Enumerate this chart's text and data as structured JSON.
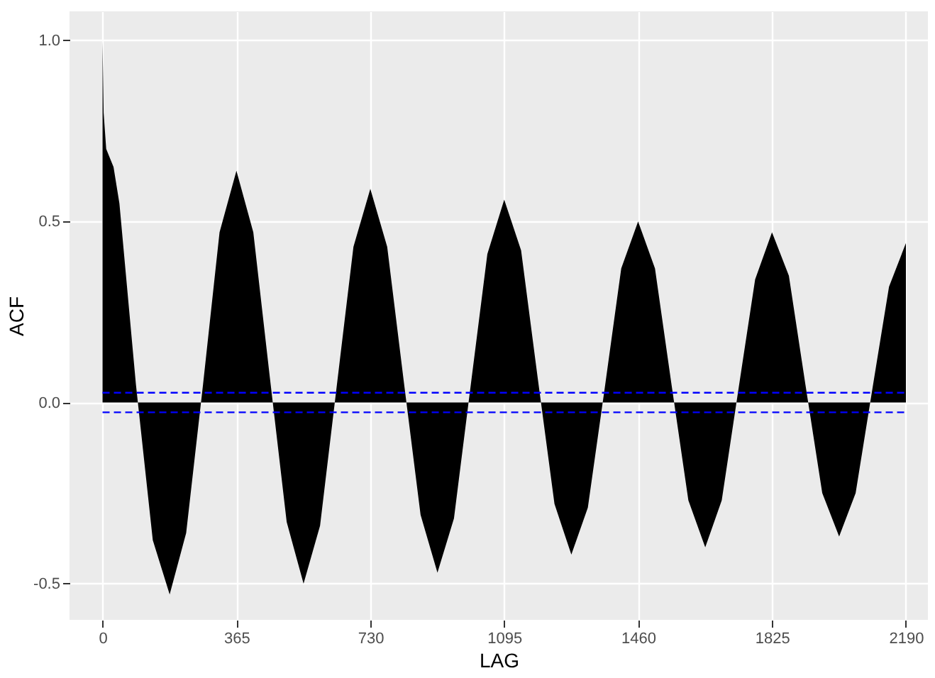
{
  "chart_data": {
    "type": "area",
    "xlabel": "LAG",
    "ylabel": "ACF",
    "x": [
      0,
      3,
      10,
      30,
      46,
      91,
      137,
      183,
      228,
      274,
      319,
      365,
      411,
      456,
      502,
      548,
      593,
      639,
      684,
      730,
      776,
      821,
      867,
      913,
      958,
      1004,
      1049,
      1095,
      1141,
      1186,
      1232,
      1278,
      1323,
      1369,
      1414,
      1460,
      1506,
      1551,
      1597,
      1643,
      1688,
      1734,
      1779,
      1825,
      1871,
      1916,
      1962,
      2008,
      2053,
      2099,
      2144,
      2190
    ],
    "series": [
      {
        "color": "#000000",
        "values": [
          1.0,
          0.8,
          0.7,
          0.65,
          0.55,
          0.05,
          -0.38,
          -0.53,
          -0.36,
          0.05,
          0.47,
          0.64,
          0.47,
          0.07,
          -0.33,
          -0.5,
          -0.34,
          0.05,
          0.43,
          0.59,
          0.43,
          0.06,
          -0.31,
          -0.47,
          -0.32,
          0.05,
          0.41,
          0.56,
          0.42,
          0.07,
          -0.28,
          -0.42,
          -0.29,
          0.04,
          0.37,
          0.5,
          0.37,
          0.05,
          -0.27,
          -0.4,
          -0.27,
          0.04,
          0.34,
          0.47,
          0.35,
          0.05,
          -0.25,
          -0.37,
          -0.25,
          0.04,
          0.32,
          0.44
        ]
      }
    ],
    "xlim": [
      -90,
      2250
    ],
    "ylim": [
      -0.6,
      1.08
    ],
    "xticks": [
      0,
      365,
      730,
      1095,
      1460,
      1825,
      2190
    ],
    "yticks": [
      {
        "value": -0.5,
        "label": "-0.5"
      },
      {
        "value": 0,
        "label": "0.0"
      },
      {
        "value": 0.5,
        "label": "0.5"
      },
      {
        "value": 1,
        "label": "1.0"
      }
    ],
    "grid": true,
    "ref_lines": [
      {
        "axis": "y",
        "value": 0.027,
        "color": "#0000ff",
        "line_style": "dashed"
      },
      {
        "axis": "y",
        "value": -0.027,
        "color": "#0000ff",
        "line_style": "dashed"
      }
    ]
  }
}
